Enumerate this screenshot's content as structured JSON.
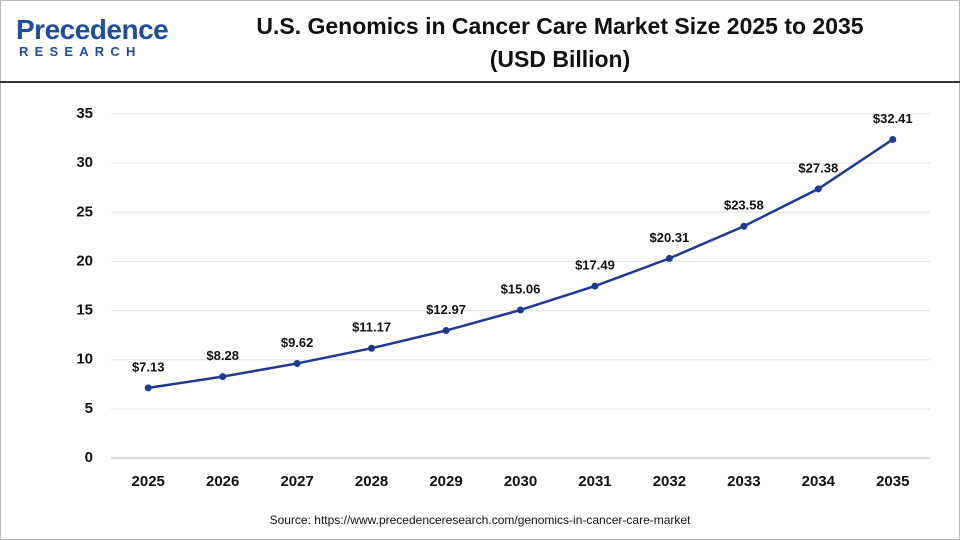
{
  "logo": {
    "name": "Precedence",
    "tagline": "RESEARCH"
  },
  "chart_data": {
    "type": "line",
    "title": "U.S. Genomics in Cancer Care Market Size 2025 to 2035 (USD Billion)",
    "categories": [
      "2025",
      "2026",
      "2027",
      "2028",
      "2029",
      "2030",
      "2031",
      "2032",
      "2033",
      "2034",
      "2035"
    ],
    "values": [
      7.13,
      8.28,
      9.62,
      11.17,
      12.97,
      15.06,
      17.49,
      20.31,
      23.58,
      27.38,
      32.41
    ],
    "value_labels": [
      "$7.13",
      "$8.28",
      "$9.62",
      "$11.17",
      "$12.97",
      "$15.06",
      "$17.49",
      "$20.31",
      "$23.58",
      "$27.38",
      "$32.41"
    ],
    "color": "#1f3a93",
    "ylim": [
      0,
      35
    ],
    "yticks": [
      0,
      5,
      10,
      15,
      20,
      25,
      30,
      35
    ],
    "grid": true,
    "source": "Source: https://www.precedenceresearch.com/genomics-in-cancer-care-market"
  }
}
